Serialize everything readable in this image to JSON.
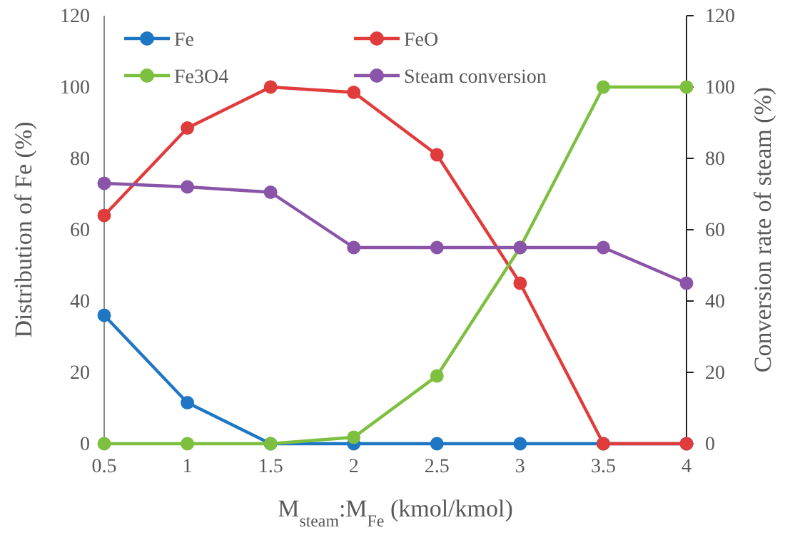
{
  "chart_data": {
    "type": "line",
    "xlabel": "M$_{steam}$:M$_{Fe}$ (kmol/kmol)",
    "ylabel": "Distribution of Fe (%)",
    "y2label": "Conversion rate of steam (%)",
    "x": [
      0.5,
      1,
      1.5,
      2,
      2.5,
      3,
      3.5,
      4
    ],
    "xlim": [
      0.5,
      4
    ],
    "xticks": [
      0.5,
      1,
      1.5,
      2,
      2.5,
      3,
      3.5,
      4
    ],
    "ylim": [
      0,
      120
    ],
    "yticks": [
      0,
      20,
      40,
      60,
      80,
      100,
      120
    ],
    "y2lim": [
      0,
      120
    ],
    "y2ticks": [
      0,
      20,
      40,
      60,
      80,
      100,
      120
    ],
    "marker": "circle",
    "line_style": "solid",
    "legend": "top",
    "series": [
      {
        "name": "Fe",
        "color": "#1f77c4",
        "values": [
          36,
          11.5,
          0,
          0,
          0,
          0,
          0,
          0
        ]
      },
      {
        "name": "FeO",
        "color": "#e03c3c",
        "values": [
          64,
          88.5,
          100,
          98.5,
          81,
          45,
          0,
          0
        ]
      },
      {
        "name": "Fe3O4",
        "color": "#7dbf3f",
        "values": [
          0,
          0,
          0,
          1.8,
          19,
          55,
          100,
          100
        ]
      },
      {
        "name": "Steam conversion",
        "color": "#8a55a8",
        "axis": "y2",
        "values": [
          73,
          72,
          70.5,
          55,
          55,
          55,
          55,
          45
        ]
      }
    ]
  }
}
